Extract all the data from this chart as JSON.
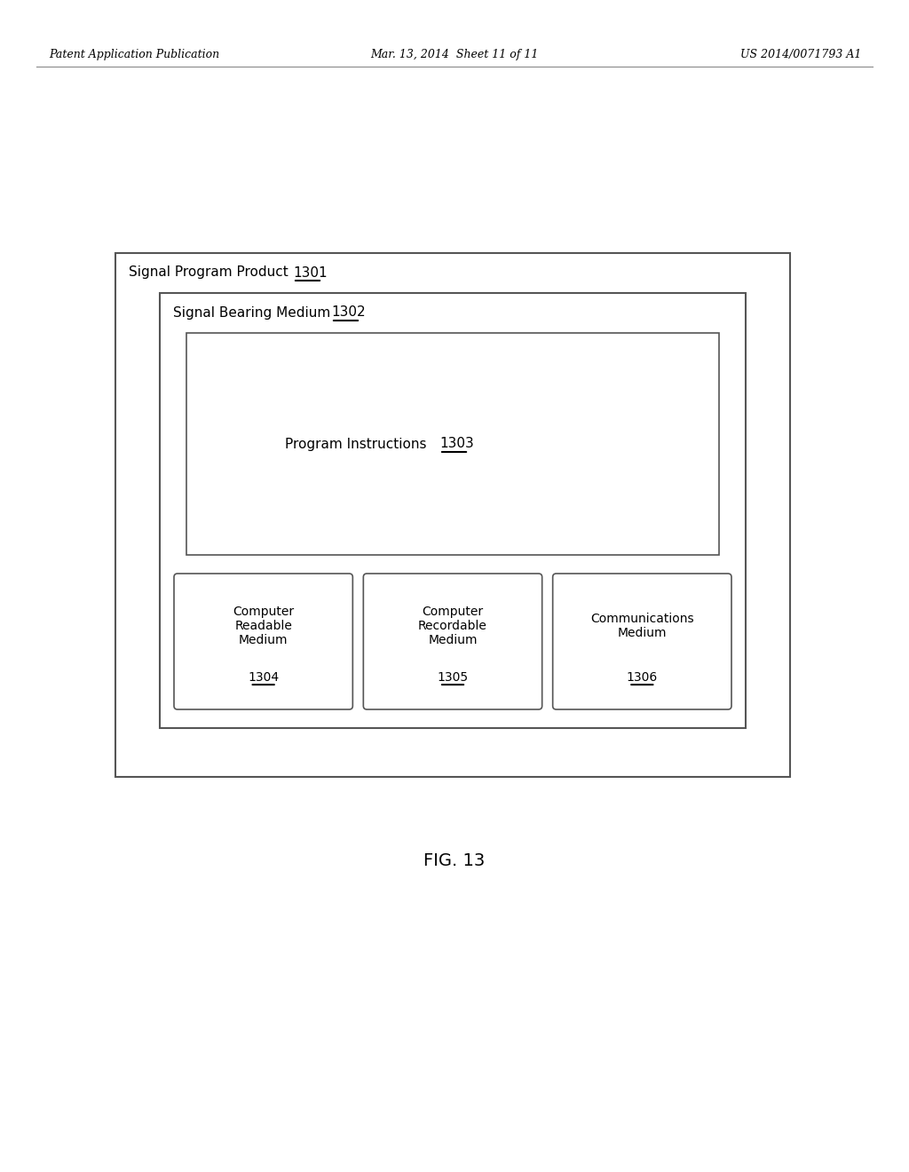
{
  "bg_color": "#ffffff",
  "header_left": "Patent Application Publication",
  "header_mid": "Mar. 13, 2014  Sheet 11 of 11",
  "header_right": "US 2014/0071793 A1",
  "figure_caption": "FIG. 13",
  "outer_box_label": "Signal Program Product",
  "outer_box_ref": "1301",
  "middle_box_label": "Signal Bearing Medium",
  "middle_box_ref": "1302",
  "inner_box_label": "Program Instructions",
  "inner_box_ref": "1303",
  "sub_boxes": [
    {
      "label": "Computer\nReadable\nMedium",
      "ref": "1304"
    },
    {
      "label": "Computer\nRecordable\nMedium",
      "ref": "1305"
    },
    {
      "label": "Communications\nMedium",
      "ref": "1306"
    }
  ],
  "text_color": "#000000",
  "box_edge_color": "#555555",
  "box_fill_color": "#ffffff",
  "header_fontsize": 9,
  "label_fontsize": 11,
  "ref_fontsize": 11,
  "caption_fontsize": 14,
  "sub_label_fontsize": 10,
  "sub_ref_fontsize": 10
}
